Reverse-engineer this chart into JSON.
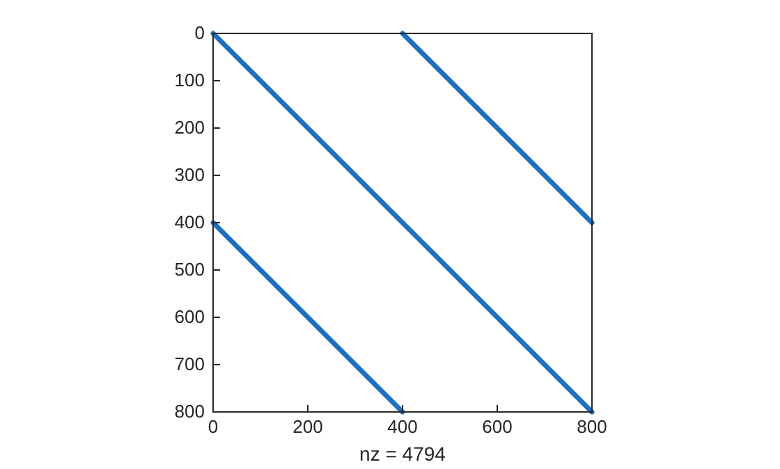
{
  "chart_data": {
    "type": "line",
    "xlabel": "nz = 4794",
    "xlim": [
      0,
      800
    ],
    "ylim": [
      800,
      0
    ],
    "xticks": [
      0,
      200,
      400,
      600,
      800
    ],
    "yticks": [
      0,
      100,
      200,
      300,
      400,
      500,
      600,
      700,
      800
    ],
    "marker": "none",
    "line_style": "solid",
    "grid": false,
    "series": [
      {
        "color": "#1f6fbf",
        "x": [
          0,
          800
        ],
        "values": [
          0,
          800
        ]
      },
      {
        "color": "#1f6fbf",
        "x": [
          400,
          800
        ],
        "values": [
          0,
          400
        ]
      },
      {
        "color": "#1f6fbf",
        "x": [
          0,
          400
        ],
        "values": [
          400,
          800
        ]
      }
    ]
  }
}
